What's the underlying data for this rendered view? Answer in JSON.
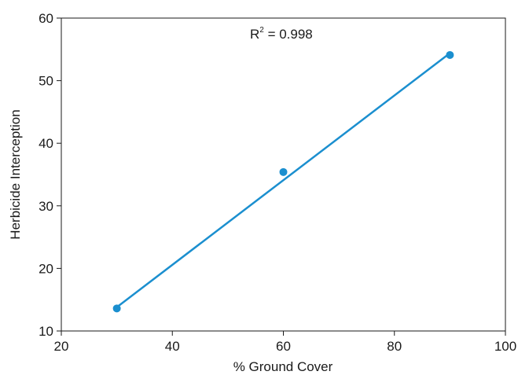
{
  "colors": {
    "series": "#1b8fcf",
    "axis": "#1a1a1a",
    "background": "#ffffff"
  },
  "chart_data": {
    "type": "scatter",
    "xlabel": "% Ground Cover",
    "ylabel": "Herbicide Interception",
    "xlim": [
      20,
      100
    ],
    "ylim": [
      10,
      60
    ],
    "xticks": [
      20,
      40,
      60,
      80,
      100
    ],
    "yticks": [
      10,
      20,
      30,
      40,
      50,
      60
    ],
    "grid": false,
    "series": [
      {
        "x": [
          30,
          60,
          90
        ],
        "y": [
          13.6,
          35.4,
          54.1
        ]
      }
    ],
    "trendline": {
      "type": "linear",
      "x": [
        30,
        90
      ],
      "y": [
        13.8,
        54.4
      ]
    },
    "annotation": {
      "base": "R",
      "superscript": "2",
      "text": " = 0.998"
    }
  }
}
